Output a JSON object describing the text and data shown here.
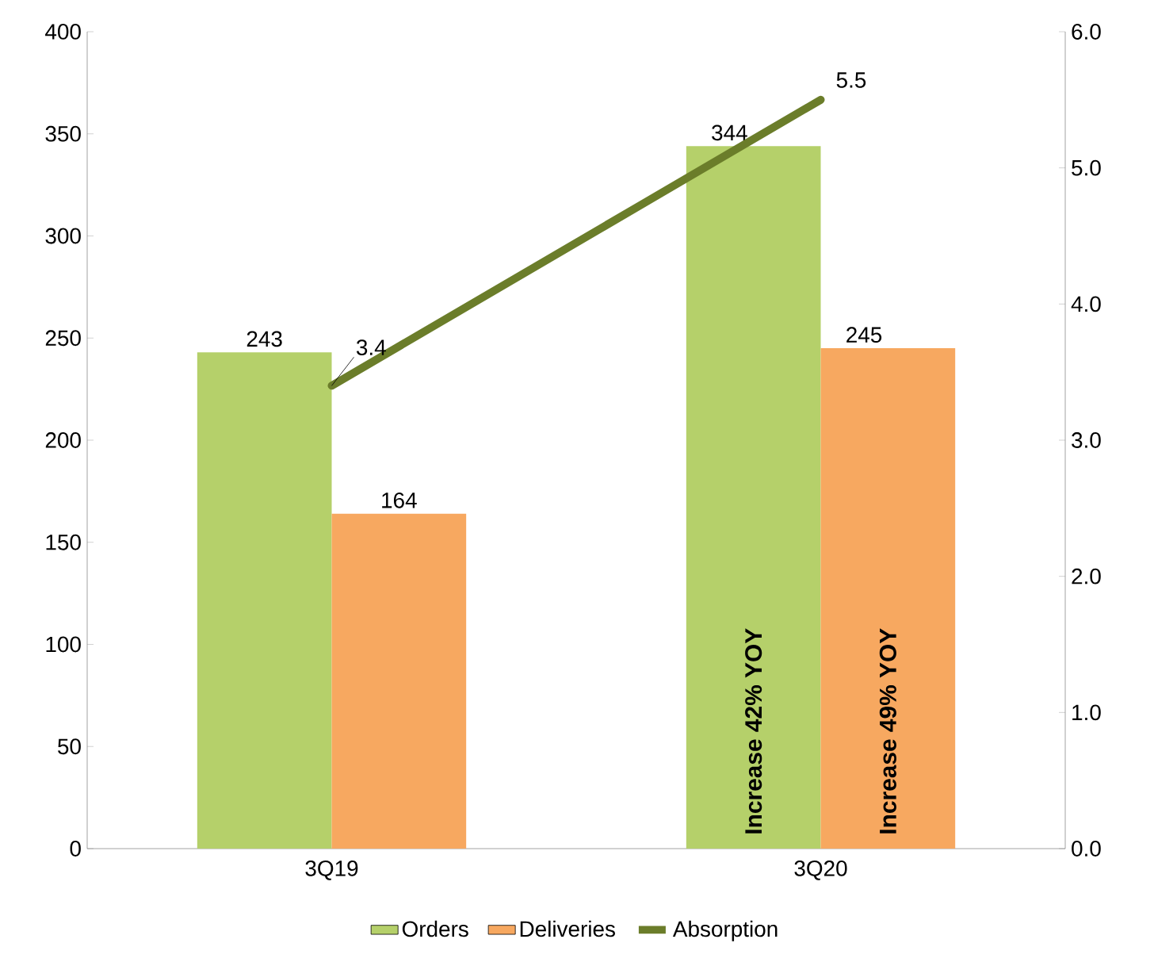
{
  "chart_data": {
    "type": "bar",
    "categories": [
      "3Q19",
      "3Q20"
    ],
    "series": [
      {
        "name": "Orders",
        "color": "#b5d06a",
        "values": [
          243,
          344
        ]
      },
      {
        "name": "Deliveries",
        "color": "#f7a860",
        "values": [
          164,
          245
        ]
      },
      {
        "name": "Absorption",
        "type": "line",
        "axis": "y2",
        "color": "#6b7d2a",
        "values": [
          3.4,
          5.5
        ]
      }
    ],
    "ylim": [
      0,
      400
    ],
    "yticks": [
      0,
      50,
      100,
      150,
      200,
      250,
      300,
      350,
      400
    ],
    "y2lim": [
      0,
      6
    ],
    "y2ticks": [
      {
        "value": 0,
        "label": "0.0"
      },
      {
        "value": 1,
        "label": "1.0"
      },
      {
        "value": 2,
        "label": "2.0"
      },
      {
        "value": 3,
        "label": "3.0"
      },
      {
        "value": 4,
        "label": "4.0"
      },
      {
        "value": 5,
        "label": "5.0"
      },
      {
        "value": 6,
        "label": "6.0"
      }
    ],
    "annotations": [
      "Increase 42% YOY",
      "Increase 49% YOY"
    ],
    "data_labels": true,
    "legend": "bottom",
    "grid": false
  }
}
